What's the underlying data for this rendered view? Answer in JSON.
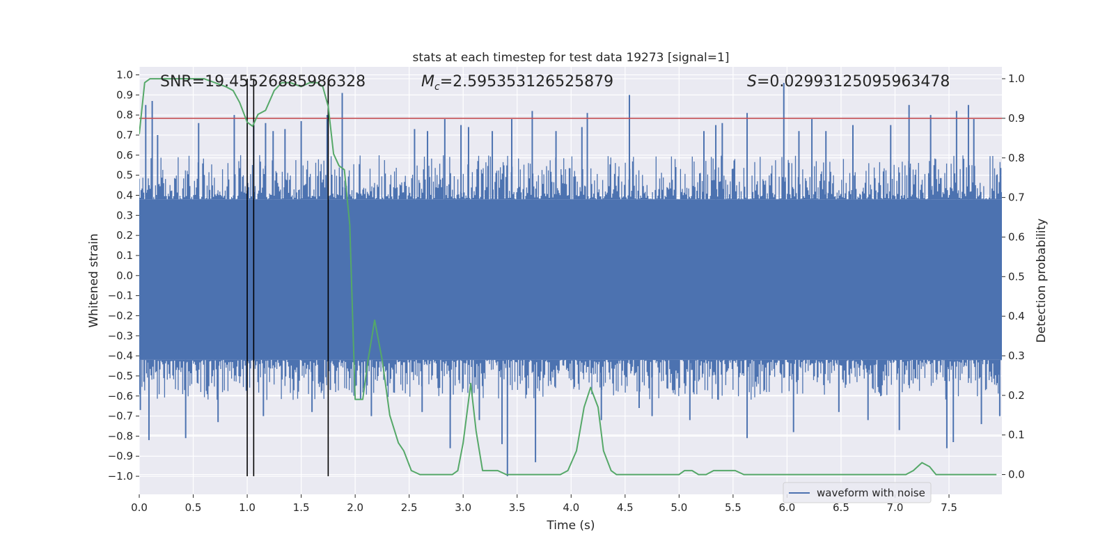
{
  "chart_data": {
    "type": "line",
    "title": "stats at each timestep for test data 19273 [signal=1]",
    "xlabel": "Time (s)",
    "ylabel_left": "Whitened strain",
    "ylabel_right": "Detection probability",
    "xlim": [
      0.0,
      7.99
    ],
    "ylim_left": [
      -1.09,
      1.04
    ],
    "ylim_right": [
      -0.05,
      1.03
    ],
    "x_ticks": [
      0.0,
      0.5,
      1.0,
      1.5,
      2.0,
      2.5,
      3.0,
      3.5,
      4.0,
      4.5,
      5.0,
      5.5,
      6.0,
      6.5,
      7.0,
      7.5
    ],
    "x_tick_labels": [
      "0.0",
      "0.5",
      "1.0",
      "1.5",
      "2.0",
      "2.5",
      "3.0",
      "3.5",
      "4.0",
      "4.5",
      "5.0",
      "5.5",
      "6.0",
      "6.5",
      "7.0",
      "7.5"
    ],
    "y_left_ticks": [
      1.0,
      0.9,
      0.8,
      0.7,
      0.6,
      0.5,
      0.4,
      0.3,
      0.2,
      0.1,
      0.0,
      -0.1,
      -0.2,
      -0.3,
      -0.4,
      -0.5,
      -0.6,
      -0.7,
      -0.8,
      -0.9,
      -1.0
    ],
    "y_left_tick_labels": [
      "1.0",
      "0.9",
      "0.8",
      "0.7",
      "0.6",
      "0.5",
      "0.4",
      "0.3",
      "0.2",
      "0.1",
      "0.0",
      "−0.1",
      "−0.2",
      "−0.3",
      "−0.4",
      "−0.5",
      "−0.6",
      "−0.7",
      "−0.8",
      "−0.9",
      "−1.0"
    ],
    "y_right_ticks": [
      0.0,
      0.1,
      0.2,
      0.3,
      0.4,
      0.5,
      0.6,
      0.7,
      0.8,
      0.9,
      1.0
    ],
    "y_right_tick_labels": [
      "0.0",
      "0.1",
      "0.2",
      "0.3",
      "0.4",
      "0.5",
      "0.6",
      "0.7",
      "0.8",
      "0.9",
      "1.0"
    ],
    "annotations": {
      "snr": "SNR=19.45526885986328",
      "mc_symbol": "M",
      "mc_sub": "c",
      "mc_value": "=2.595353126525879",
      "s_symbol": "S",
      "s_value": "=0.02993125095963478"
    },
    "legend": {
      "label": "waveform with noise",
      "position": "lower-right"
    },
    "threshold": {
      "value": 0.9,
      "color": "#c44e52"
    },
    "event_markers_x": [
      1.0,
      1.06,
      1.75
    ],
    "waveform": {
      "name": "waveform with noise",
      "color": "#4c72b0",
      "core_band": [
        -0.42,
        0.38
      ],
      "envelope": {
        "typical_max": 0.6,
        "typical_min": -0.62
      },
      "spikes_high": [
        [
          0.06,
          0.85
        ],
        [
          0.12,
          0.87
        ],
        [
          0.17,
          0.7
        ],
        [
          0.55,
          0.76
        ],
        [
          0.88,
          0.8
        ],
        [
          1.06,
          0.75
        ],
        [
          1.17,
          0.76
        ],
        [
          1.24,
          0.72
        ],
        [
          1.35,
          0.73
        ],
        [
          1.5,
          0.77
        ],
        [
          1.74,
          0.8
        ],
        [
          1.88,
          0.91
        ],
        [
          2.55,
          0.73
        ],
        [
          2.67,
          0.72
        ],
        [
          2.83,
          0.78
        ],
        [
          2.98,
          0.75
        ],
        [
          3.05,
          0.74
        ],
        [
          3.27,
          0.72
        ],
        [
          3.45,
          0.78
        ],
        [
          3.64,
          0.82
        ],
        [
          3.86,
          0.72
        ],
        [
          4.1,
          0.74
        ],
        [
          4.15,
          0.81
        ],
        [
          4.54,
          0.9
        ],
        [
          5.23,
          0.72
        ],
        [
          5.34,
          0.75
        ],
        [
          5.4,
          0.76
        ],
        [
          5.63,
          0.81
        ],
        [
          5.97,
          0.96
        ],
        [
          6.11,
          0.72
        ],
        [
          6.23,
          0.78
        ],
        [
          6.36,
          0.72
        ],
        [
          6.61,
          0.75
        ],
        [
          6.96,
          0.75
        ],
        [
          7.13,
          0.85
        ],
        [
          7.33,
          0.8
        ],
        [
          7.57,
          0.82
        ],
        [
          7.68,
          0.85
        ],
        [
          7.73,
          0.78
        ]
      ],
      "spikes_low": [
        [
          0.01,
          -0.67
        ],
        [
          0.09,
          -0.82
        ],
        [
          0.43,
          -0.81
        ],
        [
          0.73,
          -0.73
        ],
        [
          1.15,
          -0.7
        ],
        [
          1.6,
          -0.68
        ],
        [
          2.05,
          -0.62
        ],
        [
          2.15,
          -0.7
        ],
        [
          2.62,
          -0.68
        ],
        [
          2.88,
          -0.86
        ],
        [
          3.15,
          -0.72
        ],
        [
          3.36,
          -0.84
        ],
        [
          3.41,
          -1.0
        ],
        [
          3.67,
          -0.93
        ],
        [
          4.28,
          -0.72
        ],
        [
          4.75,
          -0.7
        ],
        [
          5.1,
          -0.72
        ],
        [
          5.63,
          -0.81
        ],
        [
          6.06,
          -0.78
        ],
        [
          6.75,
          -0.72
        ],
        [
          7.04,
          -0.77
        ],
        [
          7.48,
          -0.86
        ],
        [
          7.54,
          -0.83
        ],
        [
          7.8,
          -0.74
        ],
        [
          7.97,
          -0.7
        ],
        [
          1.77,
          -0.57
        ],
        [
          6.48,
          -0.68
        ],
        [
          4.63,
          -0.66
        ]
      ]
    },
    "detection_probability": {
      "color": "#55a868",
      "x": [
        0.0,
        0.05,
        0.1,
        0.2,
        0.3,
        0.4,
        0.5,
        0.6,
        0.7,
        0.8,
        0.87,
        0.93,
        1.0,
        1.05,
        1.1,
        1.17,
        1.25,
        1.32,
        1.4,
        1.5,
        1.58,
        1.65,
        1.7,
        1.75,
        1.8,
        1.85,
        1.9,
        1.95,
        2.0,
        2.07,
        2.12,
        2.18,
        2.25,
        2.32,
        2.4,
        2.45,
        2.52,
        2.6,
        2.7,
        2.8,
        2.9,
        2.95,
        3.0,
        3.07,
        3.12,
        3.18,
        3.25,
        3.32,
        3.4,
        3.5,
        3.6,
        3.7,
        3.8,
        3.9,
        3.97,
        4.05,
        4.12,
        4.18,
        4.25,
        4.3,
        4.37,
        4.42,
        4.5,
        4.6,
        4.7,
        4.8,
        4.9,
        5.0,
        5.05,
        5.12,
        5.18,
        5.25,
        5.32,
        5.38,
        5.45,
        5.52,
        5.6,
        5.7,
        5.8,
        5.9,
        6.0,
        6.1,
        6.2,
        6.3,
        6.4,
        6.5,
        6.6,
        6.7,
        6.8,
        6.9,
        7.0,
        7.1,
        7.17,
        7.25,
        7.32,
        7.38,
        7.45,
        7.52,
        7.6,
        7.7,
        7.8,
        7.94
      ],
      "values": [
        0.86,
        0.99,
        1.0,
        1.0,
        1.0,
        1.0,
        1.0,
        1.0,
        0.99,
        0.98,
        0.97,
        0.94,
        0.89,
        0.88,
        0.91,
        0.92,
        0.97,
        0.99,
        0.99,
        0.98,
        0.99,
        0.99,
        0.98,
        0.93,
        0.81,
        0.78,
        0.77,
        0.63,
        0.19,
        0.19,
        0.29,
        0.39,
        0.29,
        0.15,
        0.08,
        0.06,
        0.01,
        0.0,
        0.0,
        0.0,
        0.0,
        0.01,
        0.08,
        0.23,
        0.11,
        0.01,
        0.01,
        0.01,
        0.0,
        0.0,
        0.0,
        0.0,
        0.0,
        0.0,
        0.01,
        0.06,
        0.17,
        0.22,
        0.17,
        0.06,
        0.01,
        0.0,
        0.0,
        0.0,
        0.0,
        0.0,
        0.0,
        0.0,
        0.01,
        0.01,
        0.0,
        0.0,
        0.01,
        0.01,
        0.01,
        0.01,
        0.0,
        0.0,
        0.0,
        0.0,
        0.0,
        0.0,
        0.0,
        0.0,
        0.0,
        0.0,
        0.0,
        0.0,
        0.0,
        0.0,
        0.0,
        0.0,
        0.01,
        0.03,
        0.02,
        0.0,
        0.0,
        0.0,
        0.0,
        0.0,
        0.0,
        0.0
      ]
    }
  }
}
